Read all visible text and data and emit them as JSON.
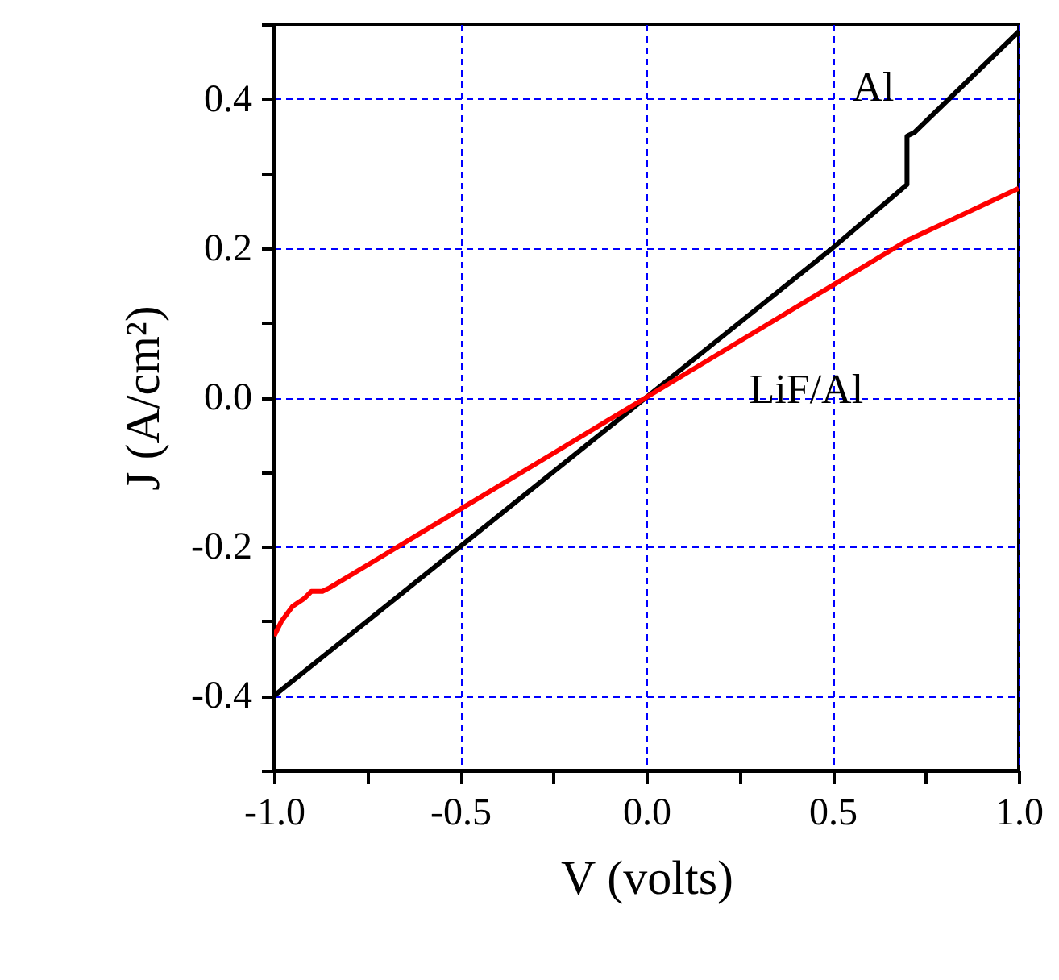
{
  "chart_data": {
    "type": "line",
    "xlabel": "V (volts)",
    "ylabel": "J (A/cm²)",
    "xlim": [
      -1.0,
      1.0
    ],
    "ylim": [
      -0.5,
      0.5
    ],
    "xticks": [
      {
        "value": -1,
        "label": "-1.0"
      },
      {
        "value": -0.75,
        "label": null
      },
      {
        "value": -0.5,
        "label": "-0.5"
      },
      {
        "value": -0.25,
        "label": null
      },
      {
        "value": 0,
        "label": "0.0"
      },
      {
        "value": 0.25,
        "label": null
      },
      {
        "value": 0.5,
        "label": "0.5"
      },
      {
        "value": 0.75,
        "label": null
      },
      {
        "value": 1,
        "label": "1.0"
      }
    ],
    "yticks": [
      {
        "value": -0.5,
        "label": null
      },
      {
        "value": -0.4,
        "label": "-0.4"
      },
      {
        "value": -0.3,
        "label": null
      },
      {
        "value": -0.2,
        "label": "-0.2"
      },
      {
        "value": -0.1,
        "label": null
      },
      {
        "value": 0,
        "label": "0.0"
      },
      {
        "value": 0.1,
        "label": null
      },
      {
        "value": 0.2,
        "label": "0.2"
      },
      {
        "value": 0.3,
        "label": null
      },
      {
        "value": 0.4,
        "label": "0.4"
      },
      {
        "value": 0.5,
        "label": null
      }
    ],
    "grid": true,
    "legend": false,
    "series": [
      {
        "name": "Al",
        "color": "#000000",
        "x": [
          -1.0,
          -0.5,
          0.0,
          0.5,
          0.7,
          0.7,
          0.72,
          1.0
        ],
        "values": [
          -0.4,
          -0.2,
          0.0,
          0.2,
          0.285,
          0.35,
          0.355,
          0.49
        ]
      },
      {
        "name": "LiF/Al",
        "color": "#ff0000",
        "x": [
          -1.0,
          -0.98,
          -0.95,
          -0.92,
          -0.9,
          -0.87,
          -0.85,
          -0.7,
          -0.5,
          -0.25,
          0.0,
          0.25,
          0.5,
          0.7,
          0.85,
          1.0
        ],
        "values": [
          -0.32,
          -0.3,
          -0.28,
          -0.27,
          -0.26,
          -0.26,
          -0.255,
          -0.21,
          -0.15,
          -0.075,
          0.0,
          0.075,
          0.15,
          0.21,
          0.245,
          0.28
        ]
      }
    ]
  }
}
